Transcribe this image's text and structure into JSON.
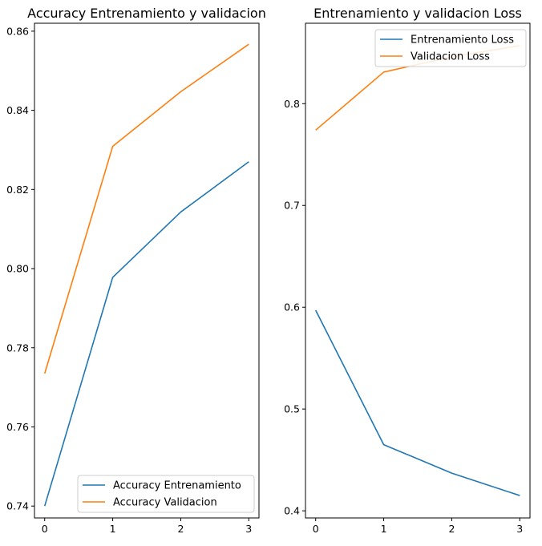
{
  "chart_data": [
    {
      "type": "line",
      "title": "Accuracy Entrenamiento y validacion",
      "xlabel": "",
      "ylabel": "",
      "x": [
        0,
        1,
        2,
        3
      ],
      "xticks": [
        "0",
        "1",
        "2",
        "3"
      ],
      "ylim": [
        0.737,
        0.862
      ],
      "yticks": [
        "0.74",
        "0.76",
        "0.78",
        "0.80",
        "0.82",
        "0.84",
        "0.86"
      ],
      "grid": false,
      "legend_position": "lower-right",
      "series": [
        {
          "name": "Accuracy Entrenamiento",
          "color": "#1f77b4",
          "values": [
            0.74,
            0.7978,
            0.8143,
            0.827
          ]
        },
        {
          "name": "Accuracy Validacion",
          "color": "#ff7f0e",
          "values": [
            0.7735,
            0.8309,
            0.8447,
            0.8567
          ]
        }
      ]
    },
    {
      "type": "line",
      "title": "Entrenamiento y validacion Loss",
      "xlabel": "",
      "ylabel": "",
      "x": [
        0,
        1,
        2,
        3
      ],
      "xticks": [
        "0",
        "1",
        "2",
        "3"
      ],
      "ylim": [
        0.393,
        0.879
      ],
      "yticks": [
        "0.4",
        "0.5",
        "0.6",
        "0.7",
        "0.8"
      ],
      "grid": false,
      "legend_position": "upper-right",
      "series": [
        {
          "name": "Entrenamiento Loss",
          "color": "#1f77b4",
          "values": [
            0.597,
            0.465,
            0.437,
            0.415
          ]
        },
        {
          "name": "Validacion Loss",
          "color": "#ff7f0e",
          "values": [
            0.774,
            0.831,
            0.846,
            0.857
          ]
        }
      ]
    }
  ]
}
